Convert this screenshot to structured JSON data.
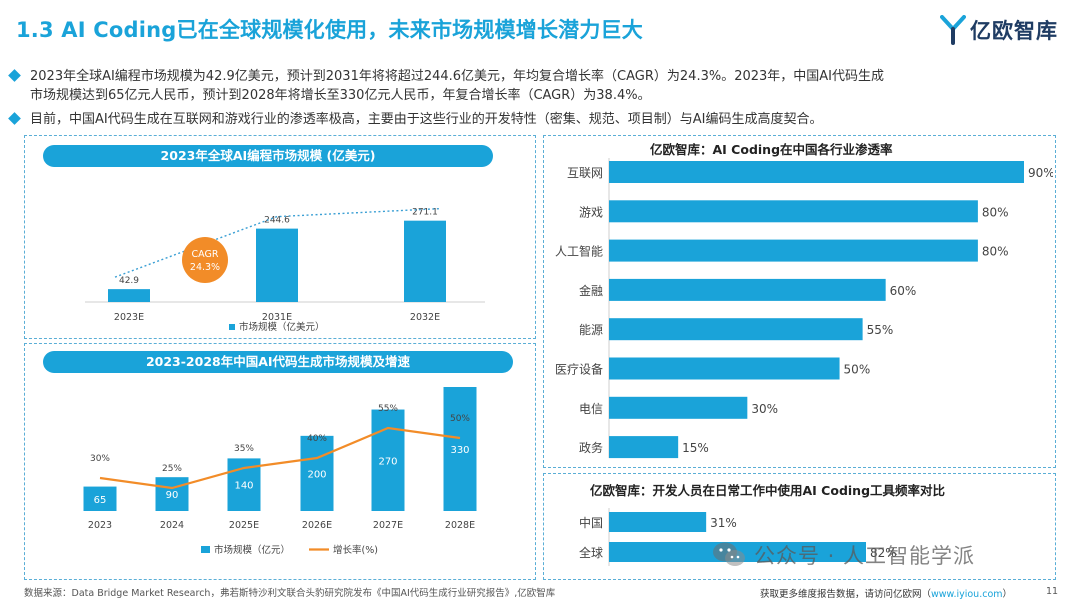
{
  "title": "1.3 AI Coding已在全球规模化使用，未来市场规模增长潜力巨大",
  "logo": {
    "text": "亿欧智库",
    "brand_color": "#1f3c63",
    "accent_color": "#1aa3d9"
  },
  "bullets": [
    {
      "line1": "2023年全球AI编程市场规模为42.9亿美元，预计到2031年将将超过244.6亿美元，年均复合增长率（CAGR）为24.3%。2023年，中国AI代码生成",
      "line2": "市场规模达到65亿元人民币，预计到2028年将增长至330亿元人民币，年复合增长率（CAGR）为38.4%。"
    },
    {
      "line1": "目前，中国AI代码生成在互联网和游戏行业的渗透率极高，主要由于这些行业的开发特性（密集、规范、项目制）与AI编码生成高度契合。"
    }
  ],
  "chart_data": [
    {
      "type": "bar",
      "title": "2023年全球AI编程市场规模 (亿美元)",
      "categories": [
        "2023E",
        "2031E",
        "2032E"
      ],
      "values": [
        42.9,
        244.6,
        271.1
      ],
      "value_labels": [
        "42.9",
        "244.6",
        "271.1"
      ],
      "legend": [
        "市场规模（亿美元）"
      ],
      "annotation": {
        "label": "CAGR",
        "value": "24.3%"
      },
      "ylim": [
        0,
        300
      ],
      "colors": {
        "bar": "#1aa3d9",
        "trend": "#3a9fd4",
        "bubble": "#f28c28"
      }
    },
    {
      "type": "bar",
      "title": "2023-2028年中国AI代码生成市场规模及增速",
      "categories": [
        "2023",
        "2024",
        "2025E",
        "2026E",
        "2027E",
        "2028E"
      ],
      "series": [
        {
          "name": "市场规模（亿元）",
          "type": "bar",
          "values": [
            65,
            90,
            140,
            200,
            270,
            330
          ],
          "labels": [
            "65",
            "90",
            "140",
            "200",
            "270",
            "330"
          ]
        },
        {
          "name": "增长率(%)",
          "type": "line",
          "values": [
            30,
            25,
            35,
            40,
            55,
            50
          ],
          "labels": [
            "30%",
            "25%",
            "35%",
            "40%",
            "55%",
            "50%"
          ]
        }
      ],
      "ylim": [
        0,
        350
      ],
      "y2lim": [
        0,
        70
      ],
      "colors": {
        "bar": "#1aa3d9",
        "line": "#f28c28"
      }
    },
    {
      "type": "bar",
      "orientation": "horizontal",
      "title": "亿欧智库：AI Coding在中国各行业渗透率",
      "categories": [
        "互联网",
        "游戏",
        "人工智能",
        "金融",
        "能源",
        "医疗设备",
        "电信",
        "政务"
      ],
      "values": [
        90,
        80,
        80,
        60,
        55,
        50,
        30,
        15
      ],
      "value_labels": [
        "90%",
        "80%",
        "80%",
        "60%",
        "55%",
        "50%",
        "30%",
        "15%"
      ],
      "xlim": [
        0,
        90
      ],
      "colors": {
        "bar": "#1aa3d9"
      }
    },
    {
      "type": "bar",
      "orientation": "horizontal",
      "title": "亿欧智库：开发人员在日常工作中使用AI Coding工具频率对比",
      "categories": [
        "中国",
        "全球"
      ],
      "values": [
        31,
        82
      ],
      "value_labels": [
        "31%",
        "82%"
      ],
      "xlim": [
        0,
        100
      ],
      "colors": {
        "bar": "#1aa3d9"
      }
    }
  ],
  "footer": {
    "source": "数据来源：Data Bridge Market Research，弗若斯特沙利文联合头豹研究院发布《中国AI代码生成行业研究报告》,亿欧智库",
    "more_prefix": "获取更多维度报告数据，请访问亿欧网（",
    "more_link": "www.iyiou.com",
    "more_suffix": "）",
    "page": "11"
  },
  "watermark": {
    "text": "公众号 · 人工智能学派",
    "icon": "wechat-icon"
  }
}
